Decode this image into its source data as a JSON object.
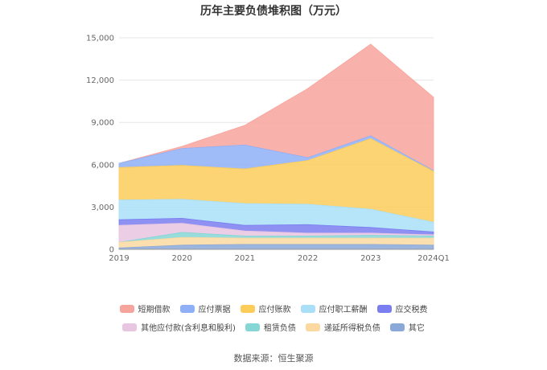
{
  "chart_data": {
    "type": "area",
    "stacked": true,
    "title": "历年主要负债堆积图（万元）",
    "categories": [
      "2019",
      "2020",
      "2021",
      "2022",
      "2023",
      "2024Q1"
    ],
    "ylim": [
      0,
      15000
    ],
    "yticks": [
      "0",
      "3,000",
      "6,000",
      "9,000",
      "12,000",
      "15,000"
    ],
    "grid": true,
    "legend_position": "bottom",
    "series": [
      {
        "name": "短期借款",
        "color": "#f7a49c",
        "values": [
          0,
          150,
          1400,
          4900,
          6500,
          5200
        ]
      },
      {
        "name": "应付票据",
        "color": "#8fb0f7",
        "values": [
          300,
          1200,
          1700,
          200,
          200,
          50
        ]
      },
      {
        "name": "应付账款",
        "color": "#fdcd5a",
        "values": [
          2300,
          2400,
          2450,
          3100,
          5000,
          3600
        ]
      },
      {
        "name": "应付职工薪酬",
        "color": "#a9dff7",
        "values": [
          1400,
          1350,
          1550,
          1450,
          1300,
          700
        ]
      },
      {
        "name": "应交税费",
        "color": "#7b7ef0",
        "values": [
          400,
          350,
          400,
          600,
          400,
          200
        ]
      },
      {
        "name": "其他应付款(含利息和股利)",
        "color": "#e8c6e2",
        "values": [
          1200,
          650,
          350,
          200,
          150,
          80
        ]
      },
      {
        "name": "租赁负债",
        "color": "#86d6d6",
        "values": [
          0,
          350,
          150,
          150,
          200,
          150
        ]
      },
      {
        "name": "递延所得税负债",
        "color": "#fbd9a0",
        "values": [
          400,
          550,
          450,
          450,
          450,
          500
        ]
      },
      {
        "name": "其它",
        "color": "#8aa8d8",
        "values": [
          100,
          300,
          350,
          350,
          350,
          300
        ]
      }
    ]
  },
  "source": "数据来源：恒生聚源"
}
